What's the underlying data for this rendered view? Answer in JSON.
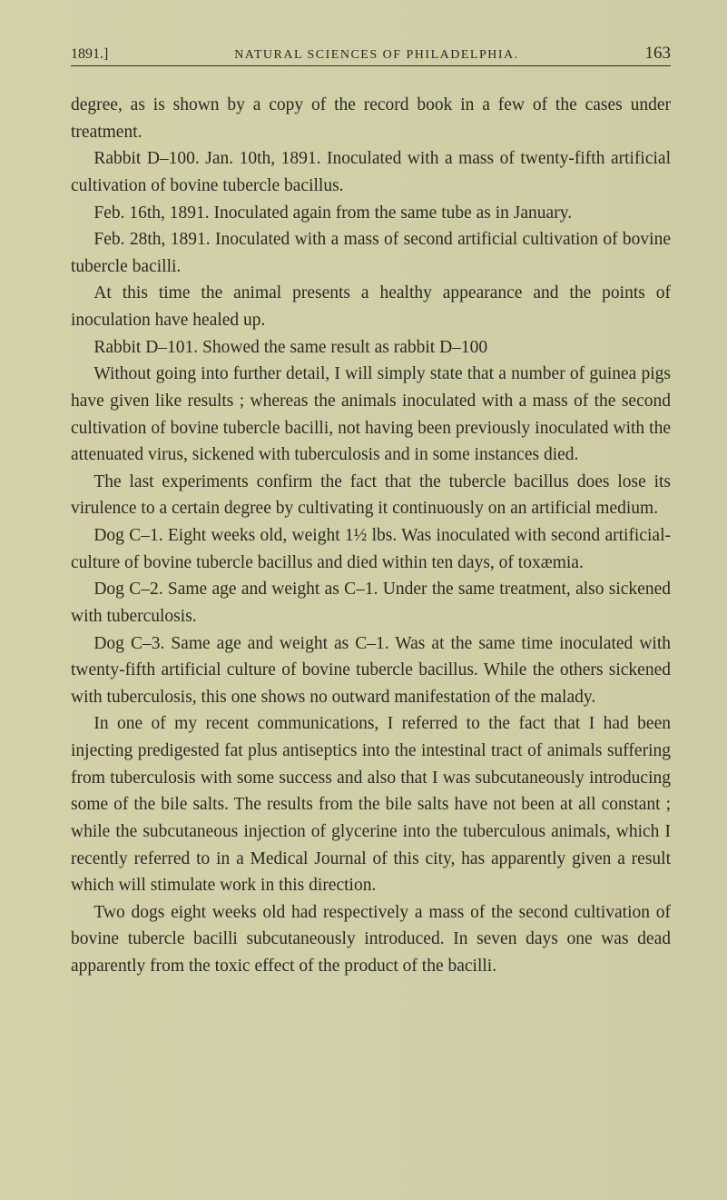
{
  "header": {
    "year": "1891.]",
    "running_title": "NATURAL SCIENCES OF PHILADELPHIA.",
    "page_number": "163"
  },
  "paragraphs": [
    "degree, as is shown by a copy of the record book in a few of the cases under treatment.",
    "Rabbit D–100. Jan. 10th, 1891. Inoculated with a mass of twenty-fifth artificial cultivation of bovine tubercle bacillus.",
    "Feb. 16th, 1891. Inoculated again from the same tube as in January.",
    "Feb. 28th, 1891. Inoculated with a mass of second artificial cultivation of bovine tubercle bacilli.",
    "At this time the animal presents a healthy appearance and the points of inoculation have healed up.",
    "Rabbit D–101. Showed the same result as rabbit D–100",
    "Without going into further detail, I will simply state that a number of guinea pigs have given like results ; whereas the animals inoculated with a mass of the second cultivation of bovine tubercle bacilli, not having been previously inoculated with the attenuated virus, sickened with tuberculosis and in some instances died.",
    "The last experiments confirm the fact that the tubercle bacillus does lose its virulence to a certain degree by cultivating it continuously on an artificial medium.",
    "Dog C–1. Eight weeks old, weight 1½ lbs. Was inoculated with second artificial-culture of bovine tubercle bacillus and died within ten days, of toxæmia.",
    "Dog C–2. Same age and weight as C–1. Under the same treatment, also sickened with tuberculosis.",
    "Dog C–3. Same age and weight as C–1. Was at the same time inoculated with twenty-fifth artificial culture of bovine tubercle bacillus. While the others sickened with tuberculosis, this one shows no outward manifestation of the malady.",
    "In one of my recent communications, I referred to the fact that I had been injecting predigested fat plus antiseptics into the intestinal tract of animals suffering from tuberculosis with some success and also that I was subcutaneously introducing some of the bile salts. The results from the bile salts have not been at all constant ; while the subcutaneous injection of glycerine into the tuberculous animals, which I recently referred to in a Medical Journal of this city, has apparently given a result which will stimulate work in this direction.",
    "Two dogs eight weeks old had respectively a mass of the second cultivation of bovine tubercle bacilli subcutaneously introduced. In seven days one was dead apparently from the toxic effect of the product of the bacilli."
  ],
  "noindent_indices": [
    0
  ]
}
